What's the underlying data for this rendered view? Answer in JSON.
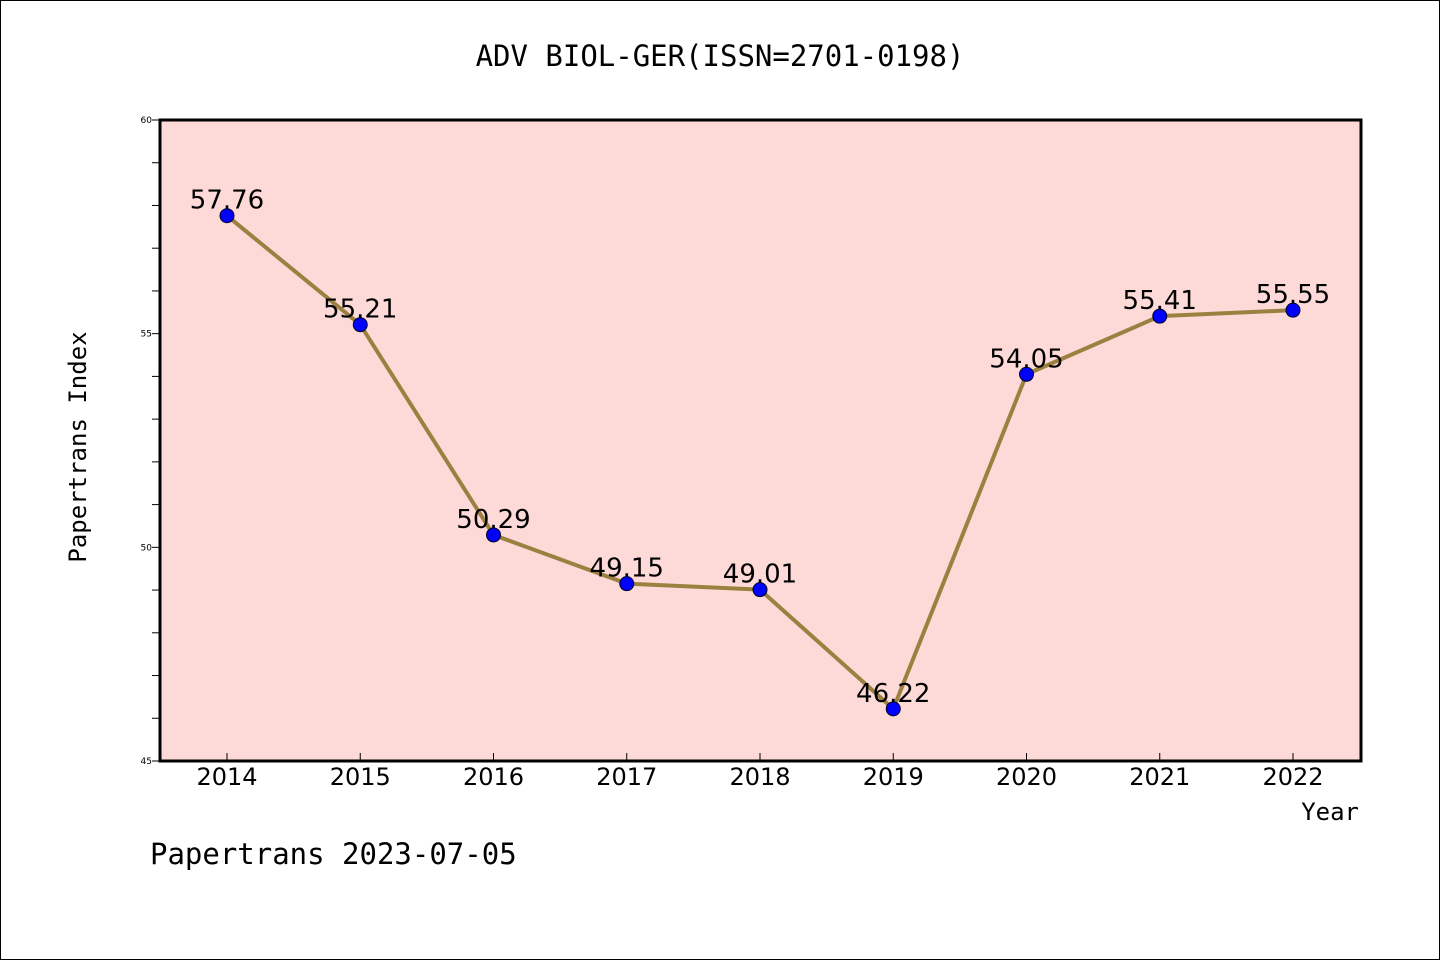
{
  "chart_data": {
    "type": "line",
    "title": "ADV BIOL-GER(ISSN=2701-0198)",
    "xlabel": "Year",
    "ylabel": "Papertrans Index",
    "footer": "Papertrans 2023-07-05",
    "categories": [
      "2014",
      "2015",
      "2016",
      "2017",
      "2018",
      "2019",
      "2020",
      "2021",
      "2022"
    ],
    "values": [
      57.76,
      55.21,
      50.29,
      49.15,
      49.01,
      46.22,
      54.05,
      55.41,
      55.55
    ],
    "data_labels": [
      "57.76",
      "55.21",
      "50.29",
      "49.15",
      "49.01",
      "46.22",
      "54.05",
      "55.41",
      "55.55"
    ],
    "ylim": [
      45,
      60
    ],
    "y_major_ticks": [
      45,
      50,
      55,
      60
    ],
    "y_tick_labels": [
      "45",
      "50",
      "55",
      "60"
    ],
    "y_minor_step": 1,
    "grid": false,
    "legend": "none",
    "colors": {
      "plot_background": "#fddad8",
      "line": "#9b8040",
      "marker": "#0000ff",
      "axis": "#000000"
    }
  }
}
